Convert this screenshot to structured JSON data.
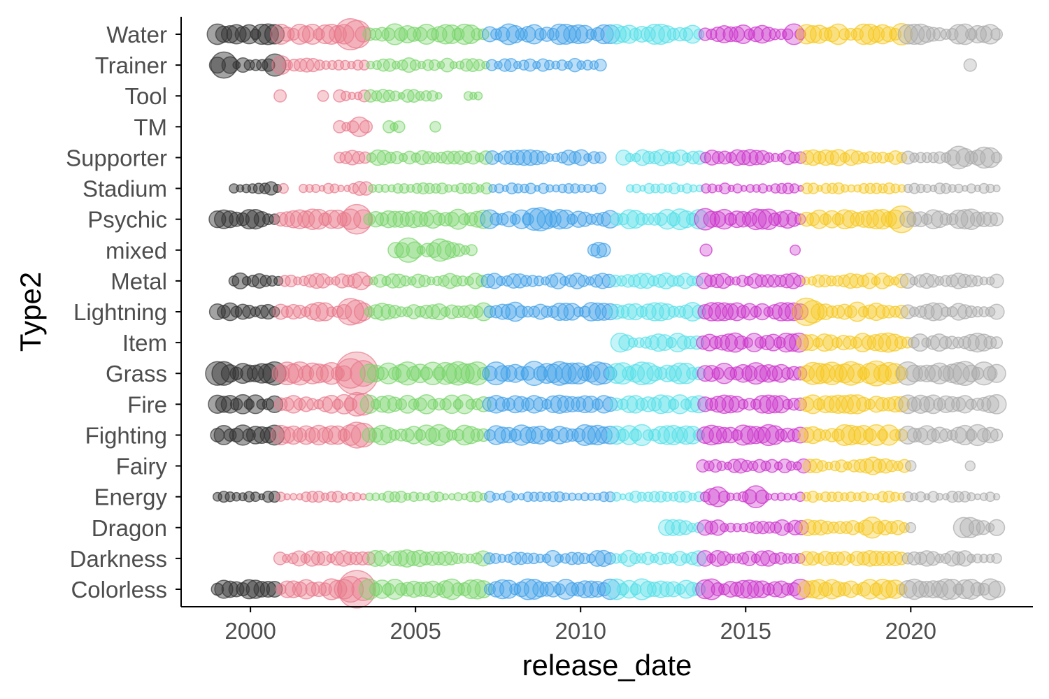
{
  "chart_data": {
    "type": "scatter",
    "title": "",
    "xlabel": "release_date",
    "ylabel": "Type2",
    "x_ticks": [
      2000,
      2005,
      2010,
      2015,
      2020
    ],
    "xlim": [
      1997.9,
      2023.7
    ],
    "grid": false,
    "legend": "none",
    "categories": [
      "Colorless",
      "Darkness",
      "Dragon",
      "Energy",
      "Fairy",
      "Fighting",
      "Fire",
      "Grass",
      "Item",
      "Lightning",
      "Metal",
      "mixed",
      "Psychic",
      "Stadium",
      "Supporter",
      "TM",
      "Tool",
      "Trainer",
      "Water"
    ],
    "eras": [
      {
        "start": 1999.0,
        "end": 2000.9,
        "color": "#333333"
      },
      {
        "start": 2000.9,
        "end": 2003.6,
        "color": "#e8788a"
      },
      {
        "start": 2003.6,
        "end": 2007.2,
        "color": "#77d46a"
      },
      {
        "start": 2007.2,
        "end": 2011.0,
        "color": "#3fa0e8"
      },
      {
        "start": 2011.0,
        "end": 2013.7,
        "color": "#55dfe8"
      },
      {
        "start": 2013.7,
        "end": 2016.8,
        "color": "#cc33cc"
      },
      {
        "start": 2016.8,
        "end": 2019.9,
        "color": "#f5c820"
      },
      {
        "start": 2019.9,
        "end": 2023.0,
        "color": "#aaaaaa"
      }
    ],
    "series": [
      {
        "category": "Colorless",
        "ranges": [
          [
            1999.0,
            2022.6
          ]
        ],
        "base": 13,
        "boost": [
          [
            2003.2,
            28
          ]
        ]
      },
      {
        "category": "Darkness",
        "ranges": [
          [
            2000.9,
            2022.6
          ]
        ],
        "base": 10,
        "boost": [
          [
            2004.8,
            14
          ],
          [
            2010.6,
            14
          ]
        ]
      },
      {
        "category": "Dragon",
        "ranges": [
          [
            2012.6,
            2020.0
          ],
          [
            2021.6,
            2022.6
          ]
        ],
        "base": 10,
        "boost": [
          [
            2012.7,
            14
          ],
          [
            2018.8,
            16
          ],
          [
            2021.7,
            18
          ]
        ]
      },
      {
        "category": "Energy",
        "ranges": [
          [
            1999.0,
            2022.6
          ]
        ],
        "base": 7,
        "boost": [
          [
            2014.1,
            16
          ],
          [
            2015.3,
            16
          ]
        ]
      },
      {
        "category": "Fairy",
        "ranges": [
          [
            2013.7,
            2020.0
          ],
          [
            2021.8,
            2021.8
          ]
        ],
        "base": 9,
        "boost": [
          [
            2018.8,
            14
          ]
        ]
      },
      {
        "category": "Fighting",
        "ranges": [
          [
            1999.0,
            2022.6
          ]
        ],
        "base": 13,
        "boost": [
          [
            2003.3,
            22
          ]
        ]
      },
      {
        "category": "Fire",
        "ranges": [
          [
            1999.0,
            2022.6
          ]
        ],
        "base": 12,
        "boost": [
          [
            2003.3,
            20
          ]
        ]
      },
      {
        "category": "Grass",
        "ranges": [
          [
            1999.0,
            2022.6
          ]
        ],
        "base": 15,
        "boost": [
          [
            2003.2,
            32
          ],
          [
            2018.9,
            20
          ]
        ]
      },
      {
        "category": "Item",
        "ranges": [
          [
            2011.2,
            2022.6
          ]
        ],
        "base": 12,
        "boost": [
          [
            2016.9,
            14
          ]
        ]
      },
      {
        "category": "Lightning",
        "ranges": [
          [
            1999.0,
            2022.6
          ]
        ],
        "base": 12,
        "boost": [
          [
            2003.1,
            22
          ],
          [
            2016.9,
            22
          ]
        ]
      },
      {
        "category": "Metal",
        "ranges": [
          [
            1999.5,
            2022.6
          ]
        ],
        "base": 10,
        "boost": [
          [
            2003.3,
            14
          ],
          [
            2010.6,
            12
          ]
        ]
      },
      {
        "category": "mixed",
        "ranges": [
          [
            2004.4,
            2006.7
          ],
          [
            2010.4,
            2010.7
          ],
          [
            2013.8,
            2013.8
          ],
          [
            2016.5,
            2016.5
          ]
        ],
        "base": 10,
        "boost": [
          [
            2004.8,
            18
          ],
          [
            2005.8,
            18
          ]
        ]
      },
      {
        "category": "Psychic",
        "ranges": [
          [
            1999.0,
            2022.6
          ]
        ],
        "base": 13,
        "boost": [
          [
            2003.2,
            22
          ],
          [
            2008.7,
            20
          ],
          [
            2013.7,
            18
          ],
          [
            2019.7,
            20
          ]
        ]
      },
      {
        "category": "Stadium",
        "ranges": [
          [
            1999.5,
            2001.0
          ],
          [
            2001.6,
            2003.5
          ],
          [
            2003.7,
            2010.6
          ],
          [
            2011.5,
            2022.6
          ]
        ],
        "base": 7,
        "boost": [
          [
            2003.4,
            12
          ],
          [
            2000.6,
            10
          ]
        ]
      },
      {
        "category": "Supporter",
        "ranges": [
          [
            2002.7,
            2010.6
          ],
          [
            2011.3,
            2022.6
          ]
        ],
        "base": 10,
        "boost": [
          [
            2021.5,
            18
          ],
          [
            2022.3,
            18
          ]
        ]
      },
      {
        "category": "TM",
        "ranges": [
          [
            2002.7,
            2003.5
          ],
          [
            2004.2,
            2004.5
          ],
          [
            2005.6,
            2005.6
          ]
        ],
        "base": 8,
        "boost": [
          [
            2003.3,
            14
          ]
        ]
      },
      {
        "category": "Tool",
        "ranges": [
          [
            2000.9,
            2000.9
          ],
          [
            2002.2,
            2002.2
          ],
          [
            2002.7,
            2005.7
          ],
          [
            2006.6,
            2006.9
          ]
        ],
        "base": 8,
        "boost": []
      },
      {
        "category": "Trainer",
        "ranges": [
          [
            1999.0,
            2010.6
          ],
          [
            2021.8,
            2021.8
          ]
        ],
        "base": 9,
        "boost": [
          [
            1999.2,
            19
          ],
          [
            2000.8,
            18
          ]
        ]
      },
      {
        "category": "Water",
        "ranges": [
          [
            1999.0,
            2022.6
          ]
        ],
        "base": 13,
        "boost": [
          [
            2003.1,
            26
          ],
          [
            2019.8,
            18
          ]
        ]
      }
    ]
  }
}
